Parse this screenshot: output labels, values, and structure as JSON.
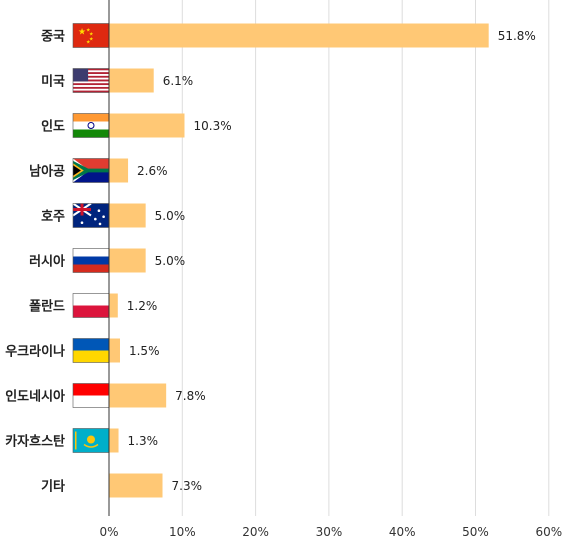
{
  "chart_data": {
    "type": "bar",
    "orientation": "horizontal",
    "categories": [
      "중국",
      "미국",
      "인도",
      "남아공",
      "호주",
      "러시아",
      "폴란드",
      "우크라이나",
      "인도네시아",
      "카자흐스탄",
      "기타"
    ],
    "flags": [
      "china-flag-icon",
      "usa-flag-icon",
      "india-flag-icon",
      "south-africa-flag-icon",
      "australia-flag-icon",
      "russia-flag-icon",
      "poland-flag-icon",
      "ukraine-flag-icon",
      "indonesia-flag-icon",
      "kazakhstan-flag-icon",
      ""
    ],
    "values": [
      51.8,
      6.1,
      10.3,
      2.6,
      5.0,
      5.0,
      1.2,
      1.5,
      7.8,
      1.3,
      7.3
    ],
    "value_labels": [
      "51.8%",
      "6.1%",
      "10.3%",
      "2.6%",
      "5.0%",
      "5.0%",
      "1.2%",
      "1.5%",
      "7.8%",
      "1.3%",
      "7.3%"
    ],
    "xlim": [
      0,
      60
    ],
    "xticks": [
      0,
      10,
      20,
      30,
      40,
      50,
      60
    ],
    "xtick_labels": [
      "0%",
      "10%",
      "20%",
      "30%",
      "40%",
      "50%",
      "60%"
    ],
    "grid": true,
    "bar_color": "#ffc875",
    "grid_color": "#dddddd",
    "axis_color": "#333333",
    "title": "",
    "xlabel": "",
    "ylabel": ""
  }
}
